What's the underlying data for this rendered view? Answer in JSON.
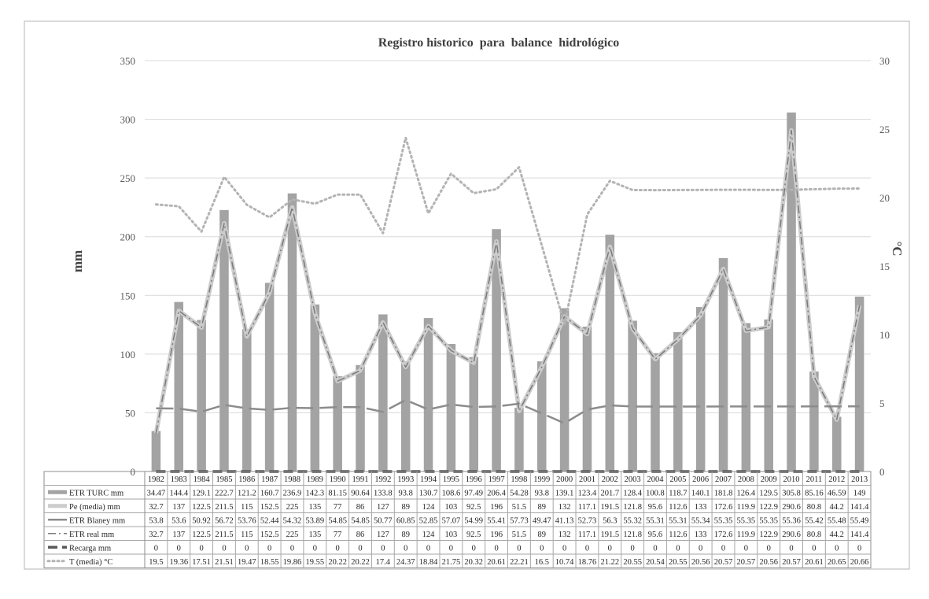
{
  "chart_data": {
    "type": "bar",
    "title": "Registro historico  para  balance  hidrológico",
    "ylabel": "mm",
    "y2label": "°C",
    "ylim": [
      0,
      350
    ],
    "y2lim": [
      0,
      30
    ],
    "yticks": [
      0,
      50,
      100,
      150,
      200,
      250,
      300,
      350
    ],
    "y2ticks": [
      0,
      5,
      10,
      15,
      20,
      25,
      30
    ],
    "grid": true,
    "legend": "data-table-left",
    "categories": [
      "1982",
      "1983",
      "1984",
      "1985",
      "1986",
      "1987",
      "1988",
      "1989",
      "1990",
      "1991",
      "1992",
      "1993",
      "1994",
      "1995",
      "1996",
      "1997",
      "1998",
      "1999",
      "2000",
      "2001",
      "2002",
      "2003",
      "2004",
      "2005",
      "2006",
      "2007",
      "2008",
      "2009",
      "2010",
      "2011",
      "2012",
      "2013"
    ],
    "series": [
      {
        "name": "ETR TURC mm",
        "type": "bar",
        "axis": "left",
        "color": "#a3a3a3",
        "values": [
          34.47,
          144.4,
          129.1,
          222.7,
          121.2,
          160.7,
          236.9,
          142.3,
          81.15,
          90.64,
          133.8,
          93.8,
          130.7,
          108.6,
          97.49,
          206.4,
          54.28,
          93.8,
          139.1,
          123.4,
          201.7,
          128.4,
          100.8,
          118.7,
          140.1,
          181.8,
          126.4,
          129.5,
          305.8,
          85.16,
          46.59,
          149
        ],
        "labels": [
          "34.47",
          "144.4",
          "129.1",
          "222.7",
          "121.2",
          "160.7",
          "236.9",
          "142.3",
          "81.15",
          "90.64",
          "133.8",
          "93.8",
          "130.7",
          "108.6",
          "97.49",
          "206.4",
          "54.28",
          "93.8",
          "139.1",
          "123.4",
          "201.7",
          "128.4",
          "100.8",
          "118.7",
          "140.1",
          "181.8",
          "126.4",
          "129.5",
          "305.8",
          "85.16",
          "46.59",
          "149"
        ]
      },
      {
        "name": "Pe (media) mm",
        "type": "line",
        "axis": "left",
        "color": "#cccccc",
        "values": [
          32.7,
          137,
          122.5,
          211.5,
          115,
          152.5,
          225,
          135,
          77,
          86,
          127,
          89,
          124,
          103,
          92.5,
          196,
          51.5,
          89,
          132,
          117.1,
          191.5,
          121.8,
          95.6,
          112.6,
          133,
          172.6,
          119.9,
          122.9,
          290.6,
          80.8,
          44.2,
          141.4
        ],
        "labels": [
          "32.7",
          "137",
          "122.5",
          "211.5",
          "115",
          "152.5",
          "225",
          "135",
          "77",
          "86",
          "127",
          "89",
          "124",
          "103",
          "92.5",
          "196",
          "51.5",
          "89",
          "132",
          "117.1",
          "191.5",
          "121.8",
          "95.6",
          "112.6",
          "133",
          "172.6",
          "119.9",
          "122.9",
          "290.6",
          "80.8",
          "44.2",
          "141.4"
        ]
      },
      {
        "name": "ETR  Blaney  mm",
        "type": "line",
        "axis": "left",
        "color": "#8c8c8c",
        "values": [
          53.8,
          53.6,
          50.92,
          56.72,
          53.76,
          52.44,
          54.32,
          53.89,
          54.85,
          54.85,
          50.77,
          60.85,
          52.85,
          57.07,
          54.99,
          55.41,
          57.73,
          49.47,
          41.13,
          52.73,
          56.3,
          55.32,
          55.31,
          55.31,
          55.34,
          55.35,
          55.35,
          55.35,
          55.36,
          55.42,
          55.48,
          55.49
        ],
        "labels": [
          "53.8",
          "53.6",
          "50.92",
          "56.72",
          "53.76",
          "52.44",
          "54.32",
          "53.89",
          "54.85",
          "54.85",
          "50.77",
          "60.85",
          "52.85",
          "57.07",
          "54.99",
          "55.41",
          "57.73",
          "49.47",
          "41.13",
          "52.73",
          "56.3",
          "55.32",
          "55.31",
          "55.31",
          "55.34",
          "55.35",
          "55.35",
          "55.35",
          "55.36",
          "55.42",
          "55.48",
          "55.49"
        ]
      },
      {
        "name": "ETR  real mm",
        "type": "line",
        "axis": "left",
        "color": "#7a7a7a",
        "values": [
          32.7,
          137,
          122.5,
          211.5,
          115,
          152.5,
          225,
          135,
          77,
          86,
          127,
          89,
          124,
          103,
          92.5,
          196,
          51.5,
          89,
          132,
          117.1,
          191.5,
          121.8,
          95.6,
          112.6,
          133,
          172.6,
          119.9,
          122.9,
          290.6,
          80.8,
          44.2,
          141.4
        ],
        "labels": [
          "32.7",
          "137",
          "122.5",
          "211.5",
          "115",
          "152.5",
          "225",
          "135",
          "77",
          "86",
          "127",
          "89",
          "124",
          "103",
          "92.5",
          "196",
          "51.5",
          "89",
          "132",
          "117.1",
          "191.5",
          "121.8",
          "95.6",
          "112.6",
          "133",
          "172.6",
          "119.9",
          "122.9",
          "290.6",
          "80.8",
          "44.2",
          "141.4"
        ]
      },
      {
        "name": "Recarga  mm",
        "type": "line",
        "axis": "left",
        "color": "#595959",
        "values": [
          0,
          0,
          0,
          0,
          0,
          0,
          0,
          0,
          0,
          0,
          0,
          0,
          0,
          0,
          0,
          0,
          0,
          0,
          0,
          0,
          0,
          0,
          0,
          0,
          0,
          0,
          0,
          0,
          0,
          0,
          0,
          0
        ],
        "labels": [
          "0",
          "0",
          "0",
          "0",
          "0",
          "0",
          "0",
          "0",
          "0",
          "0",
          "0",
          "0",
          "0",
          "0",
          "0",
          "0",
          "0",
          "0",
          "0",
          "0",
          "0",
          "0",
          "0",
          "0",
          "0",
          "0",
          "0",
          "0",
          "0",
          "0",
          "0",
          "0"
        ]
      },
      {
        "name": "T (media) °C",
        "type": "line",
        "axis": "right",
        "color": "#b3b3b3",
        "values": [
          19.5,
          19.36,
          17.51,
          21.51,
          19.47,
          18.55,
          19.86,
          19.55,
          20.22,
          20.22,
          17.4,
          24.37,
          18.84,
          21.75,
          20.32,
          20.61,
          22.21,
          16.5,
          10.74,
          18.76,
          21.22,
          20.55,
          20.54,
          20.55,
          20.56,
          20.57,
          20.57,
          20.56,
          20.57,
          20.61,
          20.65,
          20.66
        ],
        "labels": [
          "19.5",
          "19.36",
          "17.51",
          "21.51",
          "19.47",
          "18.55",
          "19.86",
          "19.55",
          "20.22",
          "20.22",
          "17.4",
          "24.37",
          "18.84",
          "21.75",
          "20.32",
          "20.61",
          "22.21",
          "16.5",
          "10.74",
          "18.76",
          "21.22",
          "20.55",
          "20.54",
          "20.55",
          "20.56",
          "20.57",
          "20.57",
          "20.56",
          "20.57",
          "20.61",
          "20.65",
          "20.66"
        ]
      }
    ]
  }
}
